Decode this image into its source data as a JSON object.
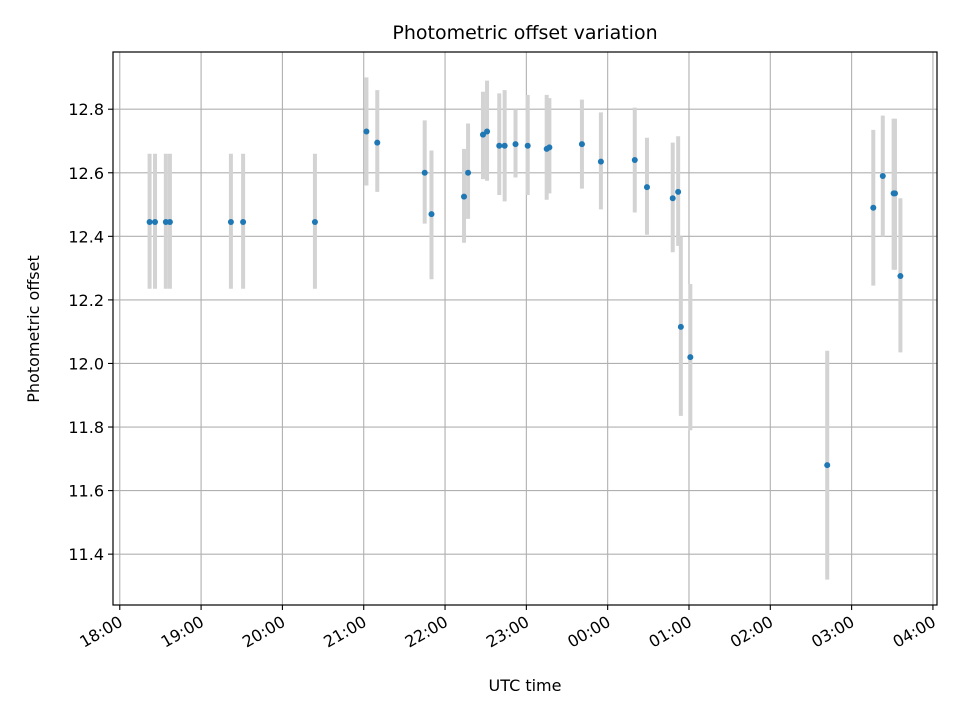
{
  "chart_data": {
    "type": "scatter",
    "title": "Photometric offset variation",
    "xlabel": "UTC time",
    "ylabel": "Photometric offset",
    "x_tick_labels": [
      "18:00",
      "19:00",
      "20:00",
      "21:00",
      "22:00",
      "23:00",
      "00:00",
      "01:00",
      "02:00",
      "03:00",
      "04:00"
    ],
    "y_ticks": [
      11.4,
      11.6,
      11.8,
      12.0,
      12.2,
      12.4,
      12.6,
      12.8
    ],
    "y_tick_labels": [
      "11.4",
      "11.6",
      "11.8",
      "12.0",
      "12.2",
      "12.4",
      "12.6",
      "12.8"
    ],
    "xlim": [
      "17:55",
      "04:03"
    ],
    "ylim": [
      11.24,
      12.98
    ],
    "grid": true,
    "marker_color": "#1f77b4",
    "errorbar_color": "#d3d3d3",
    "points": [
      {
        "x": "18:22",
        "y": 12.445,
        "ylo": 12.235,
        "yhi": 12.66
      },
      {
        "x": "18:26",
        "y": 12.445,
        "ylo": 12.235,
        "yhi": 12.66
      },
      {
        "x": "18:34",
        "y": 12.445,
        "ylo": 12.235,
        "yhi": 12.66
      },
      {
        "x": "18:37",
        "y": 12.445,
        "ylo": 12.235,
        "yhi": 12.66
      },
      {
        "x": "19:22",
        "y": 12.445,
        "ylo": 12.235,
        "yhi": 12.66
      },
      {
        "x": "19:31",
        "y": 12.445,
        "ylo": 12.235,
        "yhi": 12.66
      },
      {
        "x": "20:24",
        "y": 12.445,
        "ylo": 12.235,
        "yhi": 12.66
      },
      {
        "x": "21:02",
        "y": 12.73,
        "ylo": 12.56,
        "yhi": 12.9
      },
      {
        "x": "21:10",
        "y": 12.695,
        "ylo": 12.54,
        "yhi": 12.86
      },
      {
        "x": "21:45",
        "y": 12.6,
        "ylo": 12.44,
        "yhi": 12.765
      },
      {
        "x": "21:50",
        "y": 12.47,
        "ylo": 12.265,
        "yhi": 12.67
      },
      {
        "x": "22:14",
        "y": 12.525,
        "ylo": 12.38,
        "yhi": 12.675
      },
      {
        "x": "22:17",
        "y": 12.6,
        "ylo": 12.455,
        "yhi": 12.755
      },
      {
        "x": "22:28",
        "y": 12.72,
        "ylo": 12.58,
        "yhi": 12.855
      },
      {
        "x": "22:31",
        "y": 12.73,
        "ylo": 12.575,
        "yhi": 12.89
      },
      {
        "x": "22:40",
        "y": 12.685,
        "ylo": 12.53,
        "yhi": 12.85
      },
      {
        "x": "22:44",
        "y": 12.685,
        "ylo": 12.51,
        "yhi": 12.86
      },
      {
        "x": "22:52",
        "y": 12.69,
        "ylo": 12.585,
        "yhi": 12.8
      },
      {
        "x": "23:01",
        "y": 12.685,
        "ylo": 12.53,
        "yhi": 12.845
      },
      {
        "x": "23:15",
        "y": 12.675,
        "ylo": 12.515,
        "yhi": 12.845
      },
      {
        "x": "23:17",
        "y": 12.68,
        "ylo": 12.535,
        "yhi": 12.835
      },
      {
        "x": "23:41",
        "y": 12.69,
        "ylo": 12.55,
        "yhi": 12.83
      },
      {
        "x": "23:55",
        "y": 12.635,
        "ylo": 12.485,
        "yhi": 12.79
      },
      {
        "x": "00:20",
        "y": 12.64,
        "ylo": 12.475,
        "yhi": 12.805
      },
      {
        "x": "00:29",
        "y": 12.555,
        "ylo": 12.405,
        "yhi": 12.71
      },
      {
        "x": "00:48",
        "y": 12.52,
        "ylo": 12.35,
        "yhi": 12.695
      },
      {
        "x": "00:52",
        "y": 12.54,
        "ylo": 12.37,
        "yhi": 12.715
      },
      {
        "x": "00:54",
        "y": 12.115,
        "ylo": 11.835,
        "yhi": 12.4
      },
      {
        "x": "01:01",
        "y": 12.02,
        "ylo": 11.79,
        "yhi": 12.25
      },
      {
        "x": "02:42",
        "y": 11.68,
        "ylo": 11.32,
        "yhi": 12.04
      },
      {
        "x": "03:16",
        "y": 12.49,
        "ylo": 12.245,
        "yhi": 12.735
      },
      {
        "x": "03:23",
        "y": 12.59,
        "ylo": 12.4,
        "yhi": 12.78
      },
      {
        "x": "03:31",
        "y": 12.535,
        "ylo": 12.295,
        "yhi": 12.77
      },
      {
        "x": "03:32",
        "y": 12.535,
        "ylo": 12.295,
        "yhi": 12.77
      },
      {
        "x": "03:36",
        "y": 12.275,
        "ylo": 12.035,
        "yhi": 12.52
      }
    ]
  }
}
